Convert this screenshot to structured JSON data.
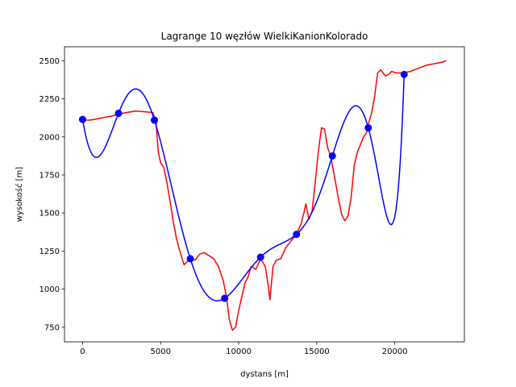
{
  "chart_data": {
    "type": "line",
    "title": "Lagrange 10 węzłów WielkiKanionKolorado",
    "xlabel": "dystans [m]",
    "ylabel": "wysokość [m]",
    "xlim": [
      -1160,
      24460
    ],
    "ylim": [
      654,
      2592
    ],
    "xticks": [
      0,
      5000,
      10000,
      15000,
      20000
    ],
    "yticks": [
      750,
      1000,
      1250,
      1500,
      1750,
      2000,
      2250,
      2500
    ],
    "grid": false,
    "series": [
      {
        "color": "#ff0000",
        "style": "line",
        "points": [
          [
            0,
            2110
          ],
          [
            500,
            2110
          ],
          [
            1000,
            2120
          ],
          [
            1500,
            2130
          ],
          [
            2000,
            2140
          ],
          [
            2300,
            2150
          ],
          [
            2800,
            2160
          ],
          [
            3400,
            2170
          ],
          [
            4000,
            2165
          ],
          [
            4500,
            2160
          ],
          [
            4700,
            2100
          ],
          [
            4850,
            1900
          ],
          [
            5000,
            1830
          ],
          [
            5200,
            1800
          ],
          [
            5400,
            1700
          ],
          [
            5600,
            1580
          ],
          [
            5800,
            1450
          ],
          [
            6000,
            1340
          ],
          [
            6200,
            1260
          ],
          [
            6500,
            1160
          ],
          [
            6900,
            1200
          ],
          [
            7200,
            1190
          ],
          [
            7500,
            1230
          ],
          [
            7800,
            1240
          ],
          [
            8100,
            1220
          ],
          [
            8400,
            1200
          ],
          [
            8700,
            1150
          ],
          [
            9000,
            1060
          ],
          [
            9200,
            960
          ],
          [
            9400,
            800
          ],
          [
            9600,
            730
          ],
          [
            9800,
            750
          ],
          [
            10000,
            860
          ],
          [
            10200,
            950
          ],
          [
            10400,
            1040
          ],
          [
            10600,
            1080
          ],
          [
            10800,
            1150
          ],
          [
            11100,
            1130
          ],
          [
            11400,
            1200
          ],
          [
            11700,
            1150
          ],
          [
            11900,
            1020
          ],
          [
            12000,
            930
          ],
          [
            12200,
            1150
          ],
          [
            12400,
            1190
          ],
          [
            12700,
            1200
          ],
          [
            13000,
            1270
          ],
          [
            13300,
            1310
          ],
          [
            13700,
            1360
          ],
          [
            14000,
            1430
          ],
          [
            14200,
            1510
          ],
          [
            14300,
            1560
          ],
          [
            14500,
            1460
          ],
          [
            14700,
            1510
          ],
          [
            14900,
            1700
          ],
          [
            15100,
            1900
          ],
          [
            15300,
            2060
          ],
          [
            15500,
            2050
          ],
          [
            15700,
            1930
          ],
          [
            15900,
            1870
          ],
          [
            16100,
            1760
          ],
          [
            16400,
            1590
          ],
          [
            16600,
            1490
          ],
          [
            16800,
            1450
          ],
          [
            17000,
            1480
          ],
          [
            17200,
            1600
          ],
          [
            17400,
            1810
          ],
          [
            17600,
            1900
          ],
          [
            17800,
            1950
          ],
          [
            18000,
            2000
          ],
          [
            18200,
            2030
          ],
          [
            18300,
            2080
          ],
          [
            18500,
            2150
          ],
          [
            18700,
            2260
          ],
          [
            18900,
            2420
          ],
          [
            19100,
            2440
          ],
          [
            19400,
            2400
          ],
          [
            19600,
            2410
          ],
          [
            19800,
            2430
          ],
          [
            20100,
            2420
          ],
          [
            20500,
            2420
          ],
          [
            21000,
            2430
          ],
          [
            21500,
            2450
          ],
          [
            22000,
            2470
          ],
          [
            22500,
            2480
          ],
          [
            23000,
            2490
          ],
          [
            23300,
            2500
          ]
        ]
      },
      {
        "color": "#0000ff",
        "style": "line",
        "interpolation": "lagrange-from-nodes"
      },
      {
        "color": "#0000ff",
        "style": "markers",
        "points": [
          [
            0,
            2115
          ],
          [
            2300,
            2155
          ],
          [
            4600,
            2110
          ],
          [
            6900,
            1200
          ],
          [
            9100,
            940
          ],
          [
            11400,
            1210
          ],
          [
            13700,
            1360
          ],
          [
            16000,
            1875
          ],
          [
            18300,
            2060
          ],
          [
            20600,
            2410
          ]
        ]
      }
    ]
  }
}
